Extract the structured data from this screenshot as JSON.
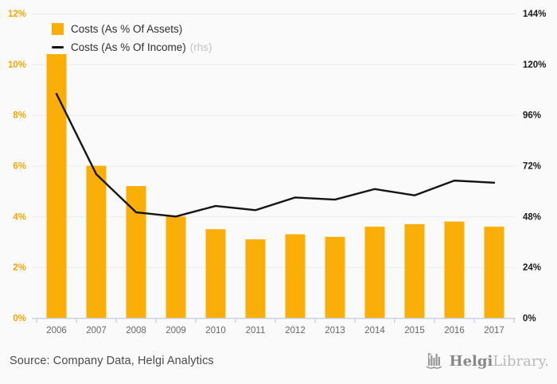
{
  "page": {
    "background": "#fafafa"
  },
  "legend": {
    "items": [
      {
        "label": "Costs (As % Of Assets)",
        "suffix": "",
        "swatch": "bar-swatch"
      },
      {
        "label": "Costs (As % Of Income)",
        "suffix": "(rhs)",
        "swatch": "line-swatch"
      }
    ]
  },
  "chart_data": {
    "type": "bar",
    "title": "",
    "xlabel": "",
    "ylabel": "",
    "categories": [
      "2006",
      "2007",
      "2008",
      "2009",
      "2010",
      "2011",
      "2012",
      "2013",
      "2014",
      "2015",
      "2016",
      "2017"
    ],
    "series": [
      {
        "name": "Costs (As % Of Assets)",
        "type": "bar",
        "axis": "left",
        "unit": "%",
        "color": "#f9ae08",
        "values": [
          10.4,
          6.0,
          5.2,
          4.0,
          3.5,
          3.1,
          3.3,
          3.2,
          3.6,
          3.7,
          3.8,
          3.6
        ]
      },
      {
        "name": "Costs (As % Of Income) (rhs)",
        "type": "line",
        "axis": "right",
        "unit": "%",
        "color": "#141414",
        "values": [
          106,
          68,
          50,
          48,
          53,
          51,
          57,
          56,
          61,
          58,
          65,
          64
        ]
      }
    ],
    "left_axis": {
      "min": 0,
      "max": 12,
      "tick_labels": [
        "0%",
        "2%",
        "4%",
        "6%",
        "8%",
        "10%",
        "12%"
      ],
      "color": "#f9a602"
    },
    "right_axis": {
      "min": 0,
      "max": 144,
      "tick_labels": [
        "0%",
        "24%",
        "48%",
        "72%",
        "96%",
        "120%",
        "144%"
      ],
      "color": "#1a1a1a"
    },
    "x_axis": {
      "label_color": "#666666",
      "line_color": "#c8cfe3"
    },
    "grid": true,
    "gridline_color": "#ececec",
    "legend_position": "top-left"
  },
  "footer": {
    "source": "Source: Company Data, Helgi Analytics",
    "logo": {
      "name": "Helgi",
      "rest": "Library."
    }
  }
}
